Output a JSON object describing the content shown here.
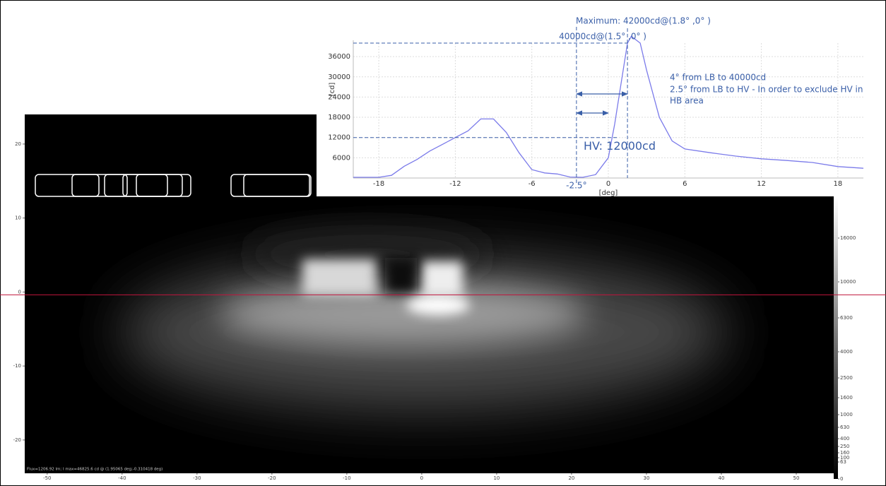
{
  "chart_data": [
    {
      "type": "line",
      "x": [
        -20,
        -18,
        -17,
        -16,
        -15,
        -14,
        -13,
        -12,
        -11,
        -10,
        -9,
        -8,
        -7,
        -6,
        -5,
        -4,
        -3,
        -2,
        -1,
        0,
        0.5,
        1,
        1.5,
        1.8,
        2.5,
        3,
        4,
        5,
        6,
        8,
        10,
        12,
        14,
        16,
        18,
        20
      ],
      "values": [
        200,
        200,
        800,
        3500,
        5500,
        8000,
        10000,
        12000,
        14000,
        17500,
        17500,
        13500,
        7500,
        2500,
        1500,
        1200,
        300,
        200,
        1000,
        6000,
        16000,
        28000,
        40000,
        42000,
        40000,
        32000,
        18000,
        11000,
        8600,
        7500,
        6500,
        5700,
        5200,
        4600,
        3400,
        2900
      ],
      "color": "#7b7bea",
      "xlabel": "[deg]",
      "ylabel": "[cd]",
      "xlim": [
        -20,
        20
      ],
      "ylim": [
        0,
        40000
      ],
      "xticks": [
        -18,
        -12,
        -6,
        0,
        6,
        12,
        18
      ],
      "yticks": [
        6000,
        12000,
        18000,
        24000,
        30000,
        36000
      ],
      "grid": true,
      "annotations": [
        {
          "text": "Maximum: 42000cd@(1.8° ,0° )"
        },
        {
          "text": "40000cd@(1.5° ,0° )",
          "x": 1.5,
          "y": 40000
        },
        {
          "text": "-2.5°",
          "x": -2.5
        },
        {
          "text": "HV: 12000cd",
          "y": 12000
        },
        {
          "text": "4° from LB to 40000cd",
          "x": [
            -2.5,
            1.5
          ]
        },
        {
          "text": "2.5° from LB to HV - In order to exclude HV in",
          "x": [
            -2.5,
            0
          ]
        },
        {
          "text": "HB area"
        }
      ]
    },
    {
      "type": "heatmap",
      "xlim": [
        -53,
        55
      ],
      "ylim": [
        -24.5,
        24
      ],
      "xticks": [
        -50,
        -40,
        -30,
        -20,
        -10,
        0,
        10,
        20,
        30,
        40,
        50
      ],
      "yticks": [
        -20,
        -10,
        0,
        10,
        20
      ],
      "colorbar_ticks": [
        16000,
        10000,
        6300,
        4000,
        2500,
        1600,
        1000,
        630,
        400,
        250,
        160,
        100,
        63,
        0
      ],
      "footer": "Flux=1206.92 lm; I max=46825.6 cd @ (1.95065 deg;-0.310418 deg)"
    }
  ]
}
